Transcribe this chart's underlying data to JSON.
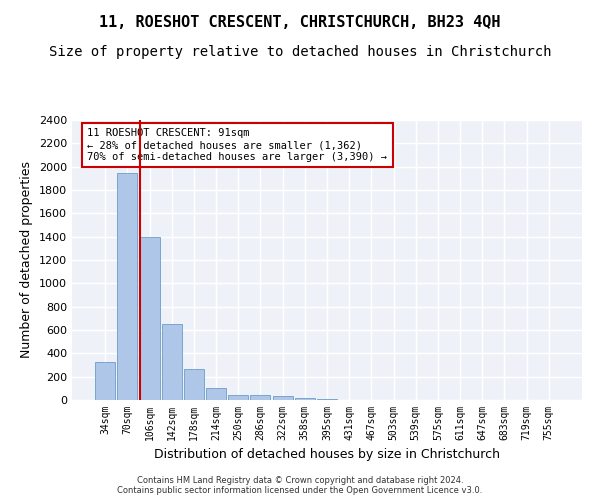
{
  "title": "11, ROESHOT CRESCENT, CHRISTCHURCH, BH23 4QH",
  "subtitle": "Size of property relative to detached houses in Christchurch",
  "xlabel": "Distribution of detached houses by size in Christchurch",
  "ylabel": "Number of detached properties",
  "footer1": "Contains HM Land Registry data © Crown copyright and database right 2024.",
  "footer2": "Contains public sector information licensed under the Open Government Licence v3.0.",
  "bar_values": [
    325,
    1950,
    1400,
    650,
    270,
    105,
    45,
    40,
    35,
    20,
    5,
    2,
    1,
    0,
    0,
    0,
    0,
    0,
    0,
    0,
    0
  ],
  "bar_labels": [
    "34sqm",
    "70sqm",
    "106sqm",
    "142sqm",
    "178sqm",
    "214sqm",
    "250sqm",
    "286sqm",
    "322sqm",
    "358sqm",
    "395sqm",
    "431sqm",
    "467sqm",
    "503sqm",
    "539sqm",
    "575sqm",
    "611sqm",
    "647sqm",
    "683sqm",
    "719sqm",
    "755sqm"
  ],
  "bar_color": "#aec6e8",
  "bar_edge_color": "#5a8fc0",
  "vline_x": 1.57,
  "vline_color": "#cc0000",
  "annotation_text": "11 ROESHOT CRESCENT: 91sqm\n← 28% of detached houses are smaller (1,362)\n70% of semi-detached houses are larger (3,390) →",
  "annotation_box_color": "#cc0000",
  "ylim": [
    0,
    2400
  ],
  "yticks": [
    0,
    200,
    400,
    600,
    800,
    1000,
    1200,
    1400,
    1600,
    1800,
    2000,
    2200,
    2400
  ],
  "background_color": "#eef2f8",
  "grid_color": "#ffffff",
  "title_fontsize": 11,
  "subtitle_fontsize": 10,
  "xlabel_fontsize": 9,
  "ylabel_fontsize": 9
}
